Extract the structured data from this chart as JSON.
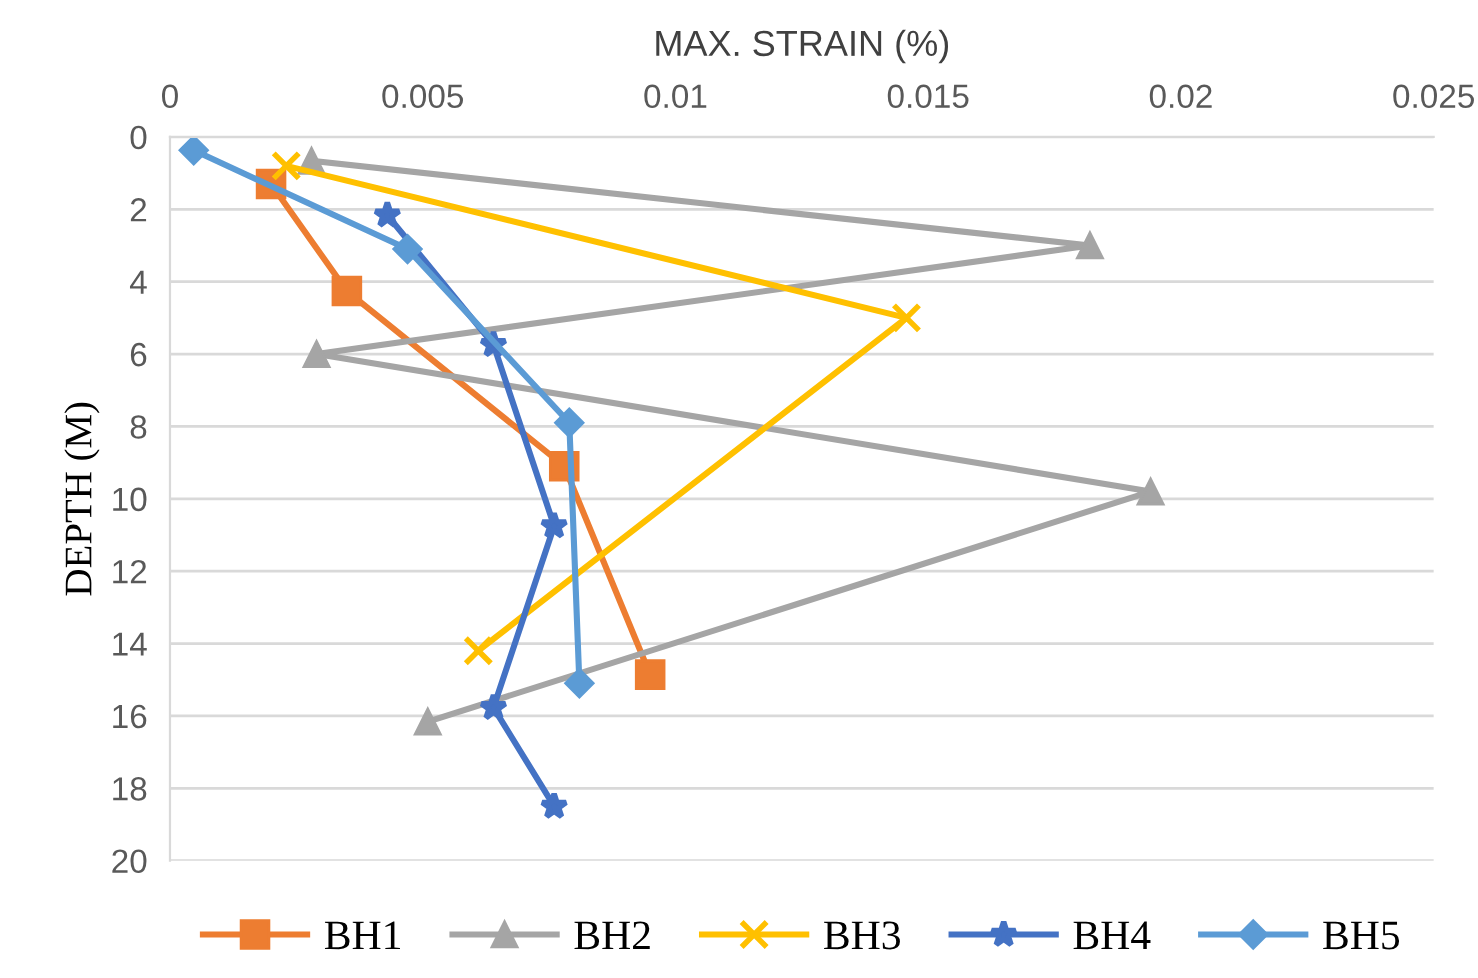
{
  "chart_data": {
    "type": "line",
    "xlabel": "MAX. STRAIN (%)",
    "ylabel": "DEPTH (M)",
    "xlim": [
      0,
      0.025
    ],
    "xticks": [
      0,
      0.005,
      0.01,
      0.015,
      0.02,
      0.025
    ],
    "ylim": [
      20,
      0
    ],
    "yticks": [
      0,
      2,
      4,
      6,
      8,
      10,
      12,
      14,
      16,
      18,
      20
    ],
    "grid": "y",
    "legend": "bottom",
    "series": [
      {
        "name": "BH1",
        "color": "#ed7d31",
        "marker": "square",
        "x": [
          0.002,
          0.0035,
          0.0078,
          0.0095
        ],
        "values": [
          1.3,
          4.26,
          9.1,
          14.86
        ]
      },
      {
        "name": "BH2",
        "color": "#a5a5a5",
        "marker": "triangle",
        "x": [
          0.0028,
          0.0182,
          0.0029,
          0.0194,
          0.0051
        ],
        "values": [
          0.66,
          3.0,
          6.0,
          9.8,
          16.16
        ]
      },
      {
        "name": "BH3",
        "color": "#ffc000",
        "marker": "cross",
        "x": [
          0.0023,
          0.01457,
          0.0061
        ],
        "values": [
          0.8,
          5.0,
          14.2
        ]
      },
      {
        "name": "BH4",
        "color": "#4472c4",
        "marker": "star",
        "x": [
          0.0043,
          0.0064,
          0.0076,
          0.0064,
          0.0076
        ],
        "values": [
          2.16,
          5.74,
          10.75,
          15.77,
          18.5
        ]
      },
      {
        "name": "BH5",
        "color": "#5b9bd5",
        "marker": "diamond",
        "x": [
          0.00047,
          0.0047,
          0.0079,
          0.0081
        ],
        "values": [
          0.37,
          3.1,
          7.9,
          15.1
        ]
      }
    ]
  }
}
